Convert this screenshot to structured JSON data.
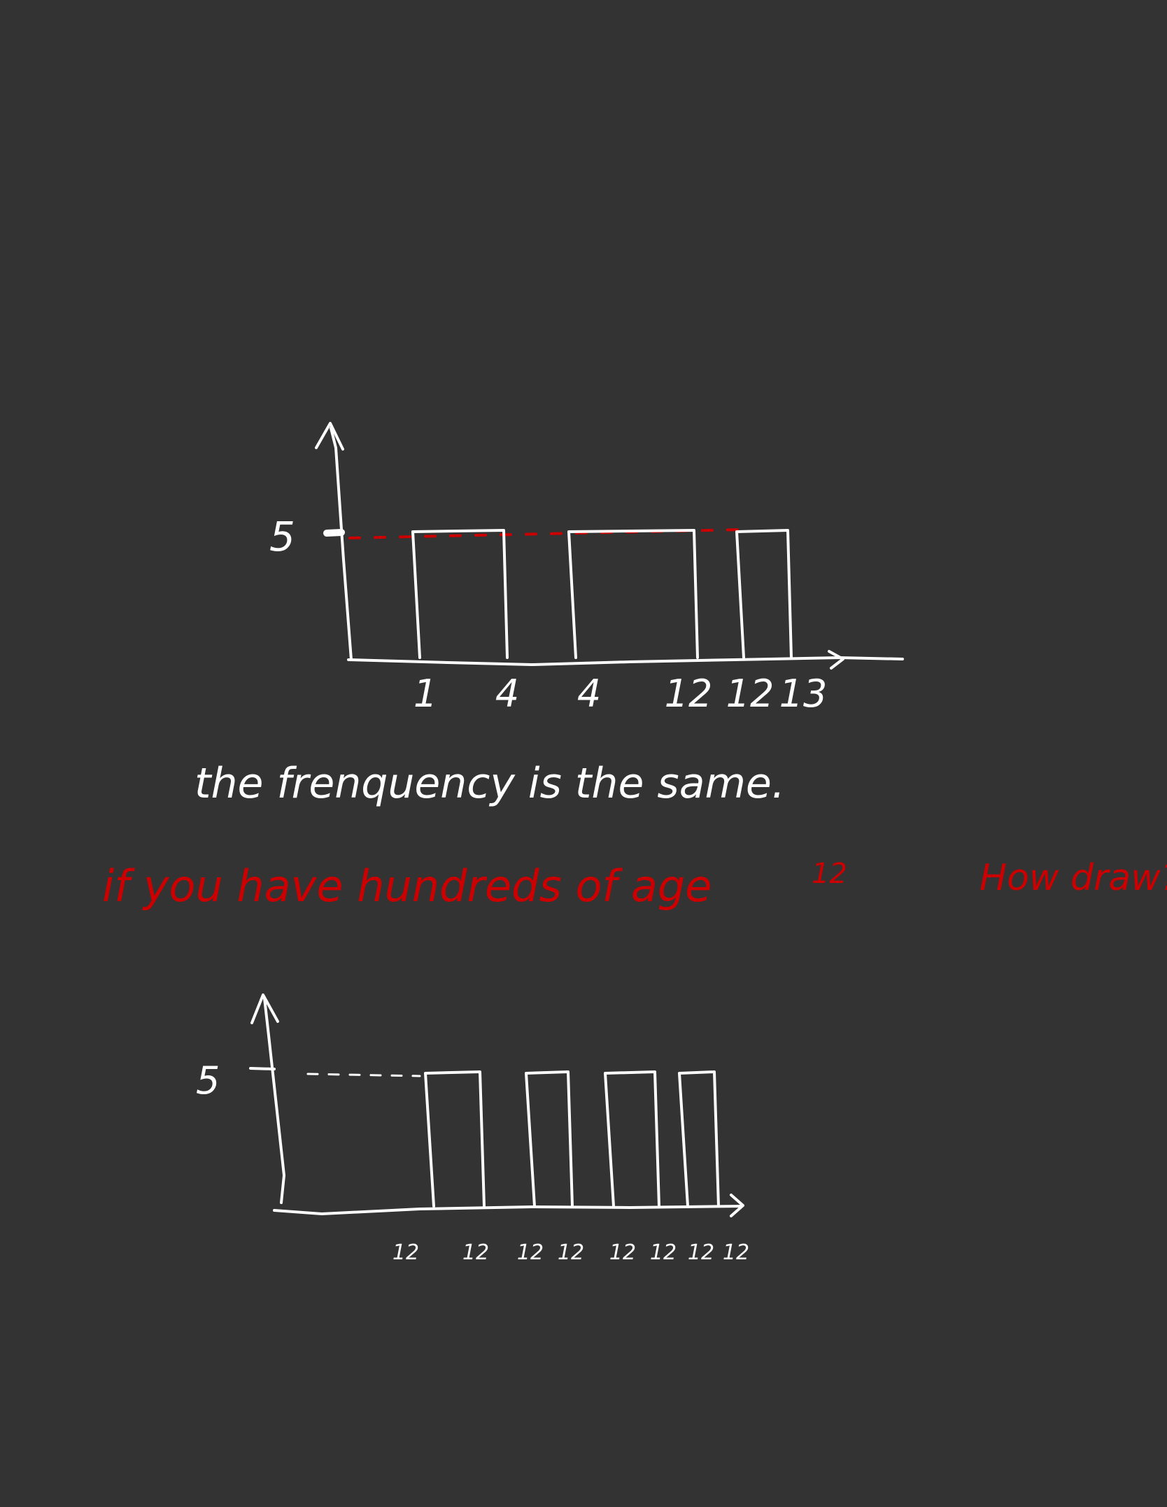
{
  "colors": {
    "background": "#333333",
    "chalk_white": "#ffffff",
    "chalk_red": "#cc0000"
  },
  "chart1": {
    "y_label": "5",
    "x_labels": [
      "1",
      "4",
      "4",
      "12",
      "12",
      "13"
    ]
  },
  "chart2": {
    "y_label": "5",
    "x_labels": [
      "12",
      "12",
      "12",
      "12",
      "12",
      "12",
      "12",
      "12"
    ]
  },
  "notes": {
    "white_line": "the frenquency is the same.",
    "red_line_1": "if you have hundreds of age",
    "red_line_2": "12",
    "red_line_3": "How draw?"
  },
  "chart_data": [
    {
      "type": "bar",
      "categories": [
        "1-4",
        "4-12",
        "12-13"
      ],
      "values": [
        5,
        5,
        5
      ],
      "xlabel": "",
      "ylabel": "",
      "grid": false
    },
    {
      "type": "bar",
      "categories": [
        "12-12",
        "12-12",
        "12-12",
        "12-12"
      ],
      "values": [
        5,
        5,
        5,
        5
      ],
      "xlabel": "",
      "ylabel": "",
      "grid": false
    }
  ]
}
